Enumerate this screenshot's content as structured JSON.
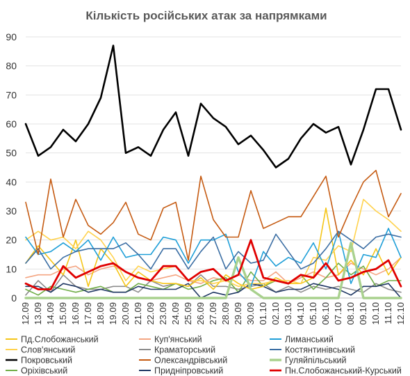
{
  "chart_data": {
    "type": "line",
    "title": "Кількість російських атак за напрямками",
    "xlabel": "",
    "ylabel": "",
    "ylim": [
      0,
      90
    ],
    "yticks": [
      0,
      10,
      20,
      30,
      40,
      50,
      60,
      70,
      80,
      90
    ],
    "grid": "horizontal",
    "legend_position": "bottom",
    "categories": [
      "12.09",
      "13.09",
      "14.09",
      "15.09",
      "16.09",
      "17.09",
      "18.09",
      "19.09",
      "20.09",
      "21.09",
      "22.09",
      "23.09",
      "24.09",
      "25.09",
      "26.09",
      "27.09",
      "28.09",
      "29.09",
      "30.09",
      "01.10",
      "02.10",
      "03.10",
      "04.10",
      "05.10",
      "06.10",
      "07.10",
      "08.10",
      "09.10",
      "10.10",
      "11.10",
      "12.10"
    ],
    "series": [
      {
        "name": "Пд.Слобожанський",
        "color": "#F5C518",
        "width": 1.6,
        "values": [
          12,
          18,
          13,
          8,
          20,
          4,
          17,
          12,
          4,
          9,
          6,
          5,
          5,
          4,
          7,
          3,
          8,
          5,
          3,
          4,
          7,
          5,
          5,
          7,
          31,
          8,
          13,
          8,
          17,
          8,
          14
        ]
      },
      {
        "name": "Куп'янський",
        "color": "#F4A582",
        "width": 1.6,
        "values": [
          7,
          8,
          8,
          10,
          11,
          8,
          10,
          11,
          9,
          7,
          6,
          7,
          8,
          6,
          5,
          7,
          6,
          8,
          6,
          6,
          9,
          5,
          7,
          9,
          7,
          8,
          12,
          10,
          8,
          10,
          14
        ]
      },
      {
        "name": "Лиманський",
        "color": "#1F9FD8",
        "width": 1.6,
        "values": [
          21,
          15,
          16,
          19,
          16,
          20,
          13,
          21,
          14,
          15,
          15,
          21,
          20,
          12,
          20,
          20,
          22,
          9,
          4,
          16,
          11,
          14,
          12,
          19,
          10,
          23,
          5,
          15,
          14,
          24,
          14
        ]
      },
      {
        "name": "Слов'янський",
        "color": "#FFD24D",
        "width": 1.6,
        "values": [
          20,
          23,
          20,
          21,
          17,
          23,
          20,
          14,
          6,
          11,
          9,
          10,
          11,
          6,
          6,
          5,
          6,
          4,
          5,
          5,
          6,
          6,
          5,
          14,
          13,
          18,
          16,
          34,
          30,
          27,
          23
        ]
      },
      {
        "name": "Краматорський",
        "color": "#8C8C8C",
        "width": 1.6,
        "values": [
          1,
          6,
          2,
          8,
          4,
          3,
          3,
          4,
          4,
          2,
          6,
          4,
          5,
          4,
          8,
          4,
          4,
          3,
          4,
          5,
          2,
          4,
          2,
          4,
          3,
          4,
          3,
          2,
          5,
          3,
          2
        ]
      },
      {
        "name": "Костянтинівський",
        "color": "#3A6DA3",
        "width": 1.6,
        "values": [
          12,
          17,
          10,
          14,
          16,
          17,
          17,
          17,
          19,
          15,
          10,
          17,
          17,
          10,
          16,
          21,
          10,
          16,
          12,
          13,
          22,
          16,
          10,
          12,
          17,
          23,
          20,
          17,
          21,
          22,
          21
        ]
      },
      {
        "name": "Покровський",
        "color": "#000000",
        "width": 2.6,
        "values": [
          60,
          49,
          52,
          58,
          54,
          60,
          69,
          87,
          50,
          52,
          49,
          58,
          64,
          49,
          67,
          62,
          59,
          53,
          56,
          51,
          45,
          48,
          55,
          60,
          57,
          59,
          46,
          58,
          72,
          72,
          58
        ]
      },
      {
        "name": "Олександрівський",
        "color": "#C55A11",
        "width": 1.6,
        "values": [
          33,
          15,
          41,
          21,
          34,
          25,
          22,
          26,
          33,
          22,
          20,
          31,
          33,
          13,
          42,
          27,
          21,
          21,
          37,
          24,
          26,
          28,
          28,
          35,
          42,
          21,
          31,
          40,
          44,
          28,
          36
        ]
      },
      {
        "name": "Гуляйпільський",
        "color": "#A9D18E",
        "width": 3.4,
        "values": [
          0,
          0,
          0,
          0,
          0,
          0,
          0,
          0,
          0,
          0,
          0,
          0,
          0,
          0,
          0,
          0,
          0,
          14,
          3,
          0,
          0,
          0,
          0,
          0,
          0,
          0,
          19,
          0,
          0,
          0,
          0
        ]
      },
      {
        "name": "Оріхівський",
        "color": "#70AD47",
        "width": 1.6,
        "values": [
          3,
          1,
          4,
          3,
          2,
          3,
          4,
          2,
          2,
          5,
          4,
          3,
          5,
          3,
          4,
          6,
          7,
          2,
          9,
          4,
          6,
          5,
          8,
          3,
          7,
          12,
          8,
          11,
          4,
          6,
          6
        ]
      },
      {
        "name": "Придніпровський",
        "color": "#203864",
        "width": 1.6,
        "values": [
          4,
          4,
          2,
          5,
          4,
          2,
          3,
          2,
          2,
          4,
          3,
          3,
          3,
          5,
          0,
          2,
          1,
          2,
          5,
          4,
          2,
          3,
          3,
          5,
          4,
          3,
          1,
          4,
          4,
          5,
          0
        ]
      },
      {
        "name": "Пн.Слобожанський-Курський",
        "color": "#E00000",
        "width": 2.8,
        "values": [
          5,
          3,
          3,
          11,
          7,
          9,
          11,
          12,
          9,
          7,
          6,
          11,
          11,
          6,
          9,
          10,
          6,
          8,
          20,
          7,
          6,
          5,
          8,
          7,
          12,
          6,
          7,
          9,
          10,
          13,
          4
        ]
      }
    ]
  }
}
